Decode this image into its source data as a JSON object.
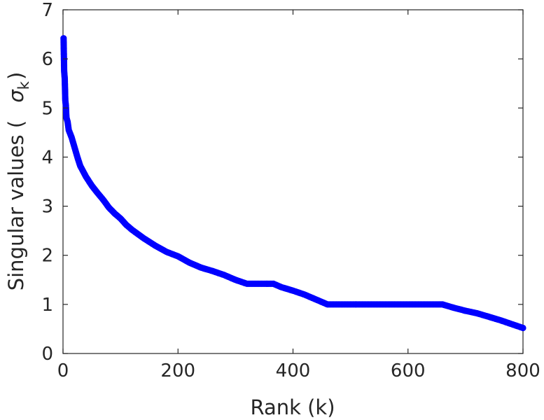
{
  "chart_data": {
    "type": "scatter",
    "title": "",
    "xlabel": "Rank (k)",
    "ylabel_parts": {
      "prefix": "Singular values (",
      "symbol": "σ",
      "subscript": "k",
      "suffix": ")"
    },
    "xlim": [
      0,
      800
    ],
    "ylim": [
      0,
      7
    ],
    "xticks": [
      0,
      200,
      400,
      600,
      800
    ],
    "yticks": [
      0,
      1,
      2,
      3,
      4,
      5,
      6,
      7
    ],
    "grid": false,
    "box": true,
    "marker_color": "#0000ff",
    "series": [
      {
        "points": [
          [
            1,
            6.42
          ],
          [
            2,
            5.75
          ],
          [
            3,
            5.6
          ],
          [
            4,
            5.15
          ],
          [
            5,
            5.05
          ],
          [
            6,
            4.8
          ],
          [
            8,
            4.72
          ],
          [
            10,
            4.55
          ],
          [
            15,
            4.4
          ],
          [
            20,
            4.2
          ],
          [
            25,
            4.0
          ],
          [
            30,
            3.82
          ],
          [
            40,
            3.6
          ],
          [
            50,
            3.42
          ],
          [
            60,
            3.27
          ],
          [
            70,
            3.13
          ],
          [
            80,
            2.97
          ],
          [
            90,
            2.85
          ],
          [
            100,
            2.75
          ],
          [
            110,
            2.62
          ],
          [
            120,
            2.52
          ],
          [
            140,
            2.35
          ],
          [
            160,
            2.2
          ],
          [
            180,
            2.07
          ],
          [
            200,
            1.98
          ],
          [
            220,
            1.85
          ],
          [
            240,
            1.75
          ],
          [
            260,
            1.68
          ],
          [
            280,
            1.6
          ],
          [
            300,
            1.5
          ],
          [
            320,
            1.42
          ],
          [
            340,
            1.42
          ],
          [
            366,
            1.42
          ],
          [
            380,
            1.35
          ],
          [
            400,
            1.28
          ],
          [
            420,
            1.2
          ],
          [
            440,
            1.1
          ],
          [
            460,
            1.0
          ],
          [
            500,
            1.0
          ],
          [
            550,
            1.0
          ],
          [
            600,
            1.0
          ],
          [
            650,
            1.0
          ],
          [
            660,
            1.0
          ],
          [
            680,
            0.93
          ],
          [
            700,
            0.87
          ],
          [
            720,
            0.82
          ],
          [
            740,
            0.75
          ],
          [
            760,
            0.68
          ],
          [
            780,
            0.6
          ],
          [
            800,
            0.52
          ]
        ]
      }
    ]
  }
}
